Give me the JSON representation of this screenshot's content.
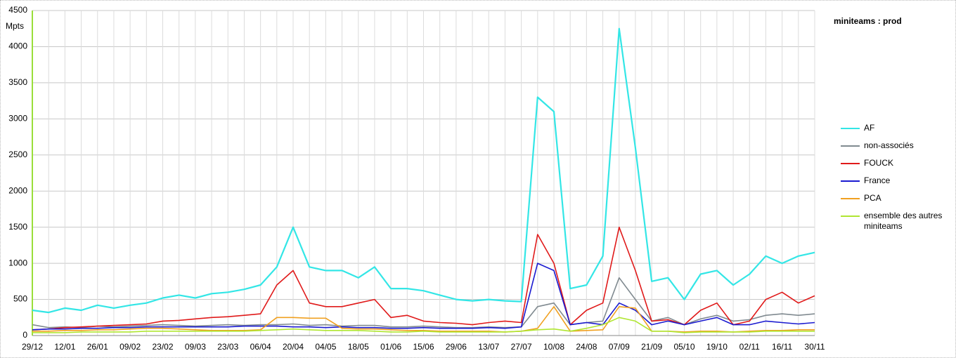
{
  "chart_data": {
    "type": "line",
    "title": "miniteams : prod",
    "y_label": "Mpts",
    "categories": [
      "29/12",
      null,
      "12/01",
      null,
      "26/01",
      null,
      "09/02",
      null,
      "23/02",
      null,
      "09/03",
      null,
      "23/03",
      null,
      "06/04",
      null,
      "20/04",
      null,
      "04/05",
      null,
      "18/05",
      null,
      "01/06",
      null,
      "15/06",
      null,
      "29/06",
      null,
      "13/07",
      null,
      "27/07",
      null,
      "10/08",
      null,
      "24/08",
      null,
      "07/09",
      null,
      "21/09",
      null,
      "05/10",
      null,
      "19/10",
      null,
      "02/11",
      null,
      "16/11",
      null,
      "30/11"
    ],
    "series": [
      {
        "name": "AF",
        "color": "#33e6e6",
        "values": [
          350,
          320,
          380,
          350,
          420,
          380,
          420,
          450,
          520,
          560,
          520,
          580,
          600,
          640,
          700,
          950,
          1500,
          950,
          900,
          900,
          800,
          950,
          650,
          650,
          620,
          560,
          500,
          480,
          500,
          480,
          470,
          3300,
          3100,
          650,
          700,
          1100,
          4250,
          2600,
          750,
          800,
          500,
          850,
          900,
          700,
          850,
          1100,
          1000,
          1100,
          1150
        ]
      },
      {
        "name": "non-associés",
        "color": "#808a90",
        "values": [
          150,
          110,
          120,
          110,
          130,
          120,
          130,
          140,
          150,
          140,
          130,
          140,
          150,
          140,
          150,
          150,
          160,
          140,
          150,
          130,
          140,
          140,
          120,
          120,
          130,
          120,
          110,
          110,
          120,
          110,
          120,
          400,
          450,
          150,
          180,
          200,
          800,
          500,
          200,
          250,
          150,
          230,
          280,
          200,
          220,
          280,
          300,
          280,
          300
        ]
      },
      {
        "name": "FOUCK",
        "color": "#e01a1a",
        "values": [
          80,
          90,
          110,
          120,
          130,
          140,
          150,
          160,
          200,
          210,
          230,
          250,
          260,
          280,
          300,
          700,
          900,
          450,
          400,
          400,
          450,
          500,
          250,
          280,
          200,
          180,
          170,
          150,
          180,
          200,
          180,
          1400,
          1000,
          150,
          350,
          450,
          1500,
          900,
          200,
          220,
          150,
          350,
          450,
          150,
          200,
          500,
          600,
          450,
          550
        ]
      },
      {
        "name": "France",
        "color": "#1a1ad0",
        "values": [
          80,
          90,
          90,
          100,
          100,
          110,
          110,
          120,
          120,
          120,
          120,
          120,
          120,
          130,
          130,
          130,
          120,
          120,
          110,
          120,
          110,
          110,
          100,
          100,
          110,
          100,
          100,
          100,
          110,
          100,
          120,
          1000,
          900,
          150,
          180,
          150,
          450,
          350,
          150,
          200,
          150,
          200,
          250,
          150,
          150,
          200,
          180,
          160,
          180
        ]
      },
      {
        "name": "PCA",
        "color": "#f0a020",
        "values": [
          60,
          60,
          70,
          70,
          80,
          80,
          90,
          100,
          100,
          90,
          80,
          70,
          70,
          70,
          80,
          250,
          250,
          240,
          240,
          100,
          90,
          90,
          80,
          70,
          70,
          60,
          60,
          60,
          60,
          50,
          60,
          100,
          400,
          60,
          70,
          80,
          400,
          380,
          60,
          60,
          50,
          60,
          60,
          50,
          60,
          70,
          70,
          80,
          80
        ]
      },
      {
        "name": "ensemble des autres miniteams",
        "color": "#b0e632",
        "values": [
          40,
          40,
          40,
          50,
          50,
          50,
          50,
          60,
          60,
          60,
          60,
          60,
          60,
          60,
          70,
          80,
          90,
          80,
          70,
          70,
          70,
          60,
          50,
          50,
          60,
          50,
          50,
          50,
          50,
          50,
          60,
          80,
          90,
          60,
          100,
          150,
          250,
          200,
          60,
          60,
          40,
          50,
          50,
          50,
          50,
          60,
          60,
          60,
          60
        ]
      }
    ],
    "ylim": [
      0,
      4500
    ],
    "yticks": [
      0,
      500,
      1000,
      1500,
      2000,
      2500,
      3000,
      3500,
      4000,
      4500
    ],
    "grid": true
  }
}
